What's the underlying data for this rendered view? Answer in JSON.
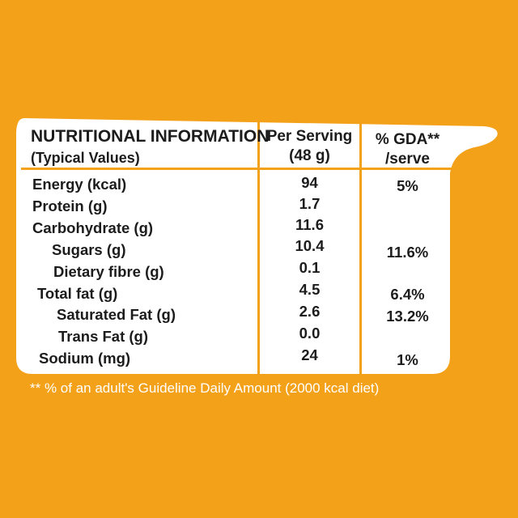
{
  "panel_color": "#ffffff",
  "background_color": "#f4a11a",
  "header": {
    "col1_line1": "NUTRITIONAL INFORMATION",
    "col1_line2": "(Typical Values)",
    "col2_line1": "Per Serving",
    "col2_line2": "(48 g)",
    "col3_line1": "% GDA**",
    "col3_line2": "/serve"
  },
  "rows": [
    {
      "name": "Energy (kcal)",
      "per_serving": "94",
      "gda": "5%"
    },
    {
      "name": "Protein (g)",
      "per_serving": "1.7",
      "gda": ""
    },
    {
      "name": "Carbohydrate (g)",
      "per_serving": "11.6",
      "gda": ""
    },
    {
      "name": "Sugars (g)",
      "per_serving": "10.4",
      "gda": "11.6%"
    },
    {
      "name": "Dietary fibre (g)",
      "per_serving": "0.1",
      "gda": ""
    },
    {
      "name": "Total fat (g)",
      "per_serving": "4.5",
      "gda": "6.4%"
    },
    {
      "name": "Saturated Fat (g)",
      "per_serving": "2.6",
      "gda": "13.2%"
    },
    {
      "name": "Trans Fat (g)",
      "per_serving": "0.0",
      "gda": ""
    },
    {
      "name": "Sodium (mg)",
      "per_serving": "24",
      "gda": "1%"
    }
  ],
  "footnote": "** % of an adult's Guideline Daily Amount (2000 kcal diet)"
}
